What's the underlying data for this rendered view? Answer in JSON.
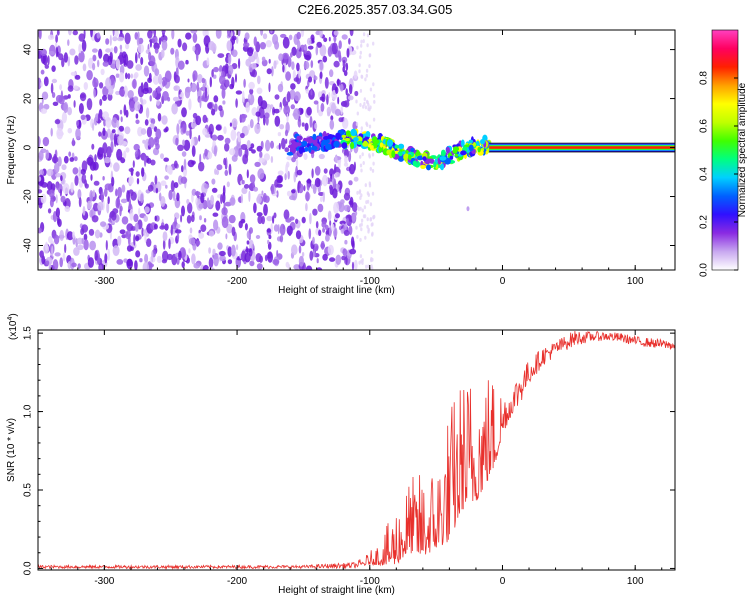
{
  "title": "C2E6.2025.357.03.34.G05",
  "chart_data": [
    {
      "type": "heatmap",
      "xlabel": "Height of straight line (km)",
      "ylabel": "Frequency (Hz)",
      "xlim": [
        -350,
        130
      ],
      "ylim": [
        -50,
        48
      ],
      "x_ticks": [
        -300,
        -200,
        -100,
        0,
        100
      ],
      "x_tick_labels": [
        "-300",
        "-200",
        "-100",
        "0",
        "100"
      ],
      "y_ticks": [
        -40,
        -20,
        0,
        20,
        40
      ],
      "y_tick_labels": [
        "-40",
        "-20",
        "0",
        "20",
        "40"
      ],
      "noise_region_x": [
        -350,
        -110
      ],
      "signal_track": [
        {
          "x": -155,
          "y": 2
        },
        {
          "x": -145,
          "y": 1
        },
        {
          "x": -130,
          "y": 3
        },
        {
          "x": -110,
          "y": 4
        },
        {
          "x": -95,
          "y": 2
        },
        {
          "x": -80,
          "y": -1
        },
        {
          "x": -65,
          "y": -4
        },
        {
          "x": -55,
          "y": -6
        },
        {
          "x": -45,
          "y": -5
        },
        {
          "x": -35,
          "y": -2
        },
        {
          "x": -25,
          "y": 0
        },
        {
          "x": -15,
          "y": 1
        },
        {
          "x": -8,
          "y": 0
        },
        {
          "x": 10,
          "y": 0
        },
        {
          "x": 130,
          "y": 0
        }
      ],
      "colorbar": {
        "label": "Normalized spectral amplitude",
        "range": [
          0,
          1
        ],
        "ticks": [
          0.0,
          0.2,
          0.4,
          0.6,
          0.8
        ],
        "tick_labels": [
          "0.0",
          "0.2",
          "0.4",
          "0.6",
          "0.8"
        ],
        "colors": [
          "#ffffff",
          "#c8a8f0",
          "#8a2be2",
          "#3010ff",
          "#0060ff",
          "#00d0ff",
          "#00ff80",
          "#40ff00",
          "#c0ff00",
          "#ffff00",
          "#ffa000",
          "#ff2000",
          "#ff0060",
          "#ff40c0"
        ]
      },
      "grid": false
    },
    {
      "type": "line",
      "xlabel": "Height of straight line (km)",
      "ylabel": "SNR (10 * v/v)",
      "scale_label": "(x10",
      "scale_exponent": "4",
      "scale_close": ")",
      "xlim": [
        -350,
        130
      ],
      "ylim": [
        -0.01,
        1.52
      ],
      "x_ticks": [
        -300,
        -200,
        -100,
        0,
        100
      ],
      "x_tick_labels": [
        "-300",
        "-200",
        "-100",
        "0",
        "100"
      ],
      "y_ticks": [
        0.0,
        0.5,
        1.0,
        1.5
      ],
      "y_tick_labels": [
        "0.0",
        "0.5",
        "1.0",
        "1.5"
      ],
      "series": [
        {
          "color": "#e8302c",
          "x": [
            -350,
            -300,
            -250,
            -200,
            -150,
            -110,
            -100,
            -90,
            -80,
            -70,
            -60,
            -50,
            -40,
            -30,
            -20,
            -10,
            -5,
            0,
            10,
            20,
            30,
            40,
            50,
            55,
            60,
            70,
            80,
            90,
            100,
            110,
            120,
            130
          ],
          "y": [
            0.01,
            0.01,
            0.01,
            0.01,
            0.01,
            0.02,
            0.05,
            0.08,
            0.15,
            0.25,
            0.25,
            0.3,
            0.45,
            0.65,
            0.7,
            0.8,
            0.85,
            0.95,
            1.1,
            1.25,
            1.35,
            1.4,
            1.45,
            1.47,
            1.47,
            1.48,
            1.48,
            1.47,
            1.45,
            1.44,
            1.43,
            1.42
          ],
          "noise": [
            0.01,
            0.01,
            0.01,
            0.01,
            0.01,
            0.02,
            0.05,
            0.12,
            0.25,
            0.3,
            0.35,
            0.35,
            0.55,
            0.55,
            0.55,
            0.45,
            0.35,
            0.2,
            0.12,
            0.08,
            0.06,
            0.05,
            0.05,
            0.05,
            0.04,
            0.03,
            0.03,
            0.03,
            0.03,
            0.03,
            0.03,
            0.03
          ]
        }
      ],
      "grid": false
    }
  ]
}
